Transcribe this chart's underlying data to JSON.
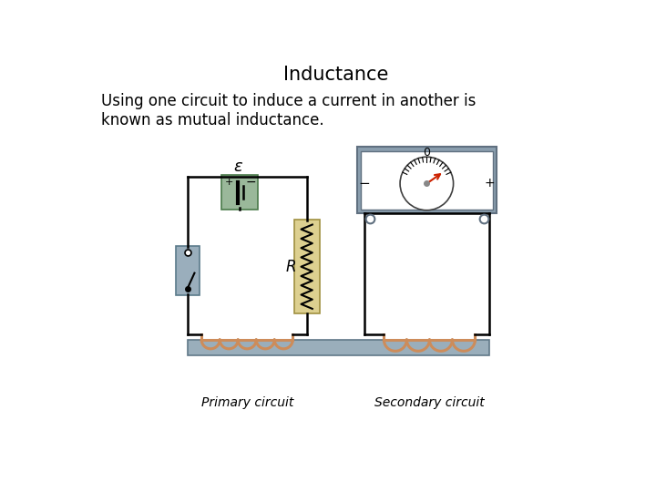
{
  "title": "Inductance",
  "subtitle": "Using one circuit to induce a current in another is\nknown as mutual inductance.",
  "title_fontsize": 15,
  "subtitle_fontsize": 12,
  "background_color": "#ffffff",
  "circuit_wire_color": "#000000",
  "battery_bg": "#9ab89a",
  "resistor_bg": "#ddd090",
  "switch_bg": "#9aaebc",
  "meter_bg": "#8a9eae",
  "iron_core_color": "#9aaebb",
  "coil_color": "#cd8c5a",
  "primary_label": "Primary circuit",
  "secondary_label": "Secondary circuit",
  "epsilon_label": "ε"
}
